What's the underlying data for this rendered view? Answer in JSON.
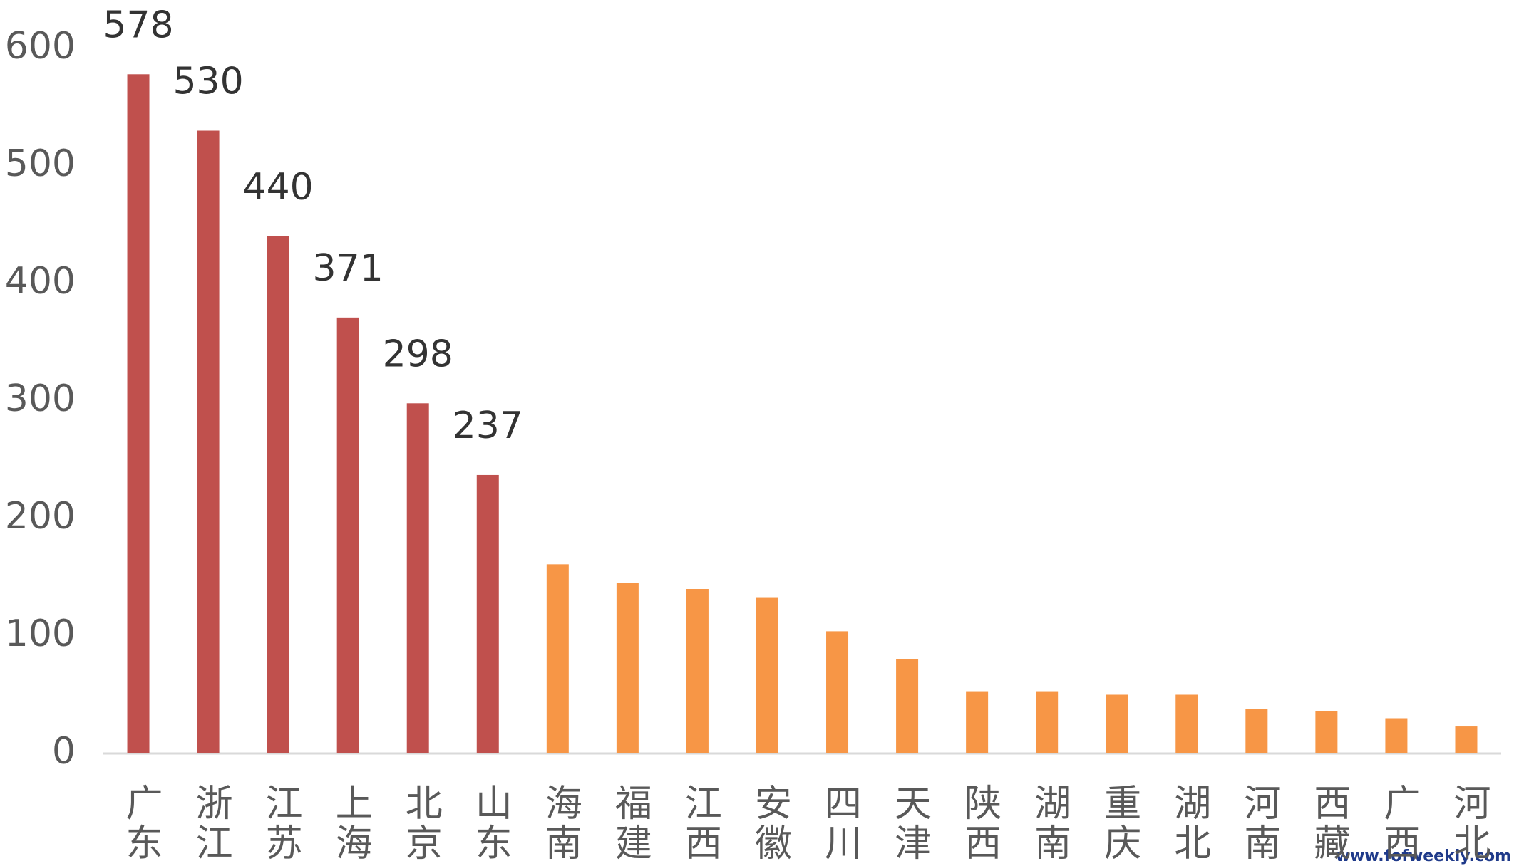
{
  "chart_data": {
    "type": "bar",
    "categories": [
      "广东",
      "浙江",
      "江苏",
      "上海",
      "北京",
      "山东",
      "海南",
      "福建",
      "江西",
      "安徽",
      "四川",
      "天津",
      "陕西",
      "湖南",
      "重庆",
      "湖北",
      "河南",
      "西藏",
      "广西",
      "河北"
    ],
    "series": [
      {
        "color": "#c0504d",
        "data_labels": true,
        "values": [
          578,
          530,
          440,
          371,
          298,
          237,
          null,
          null,
          null,
          null,
          null,
          null,
          null,
          null,
          null,
          null,
          null,
          null,
          null,
          null
        ]
      },
      {
        "color": "#f79646",
        "data_labels": false,
        "values": [
          null,
          null,
          null,
          null,
          null,
          null,
          161,
          145,
          140,
          133,
          104,
          80,
          53,
          53,
          50,
          50,
          38,
          36,
          30,
          23
        ]
      }
    ],
    "ylim": [
      0,
      600
    ],
    "yticks": [
      0,
      100,
      200,
      300,
      400,
      500,
      600
    ],
    "grid": false,
    "watermark": "www.fofweekly.com"
  }
}
